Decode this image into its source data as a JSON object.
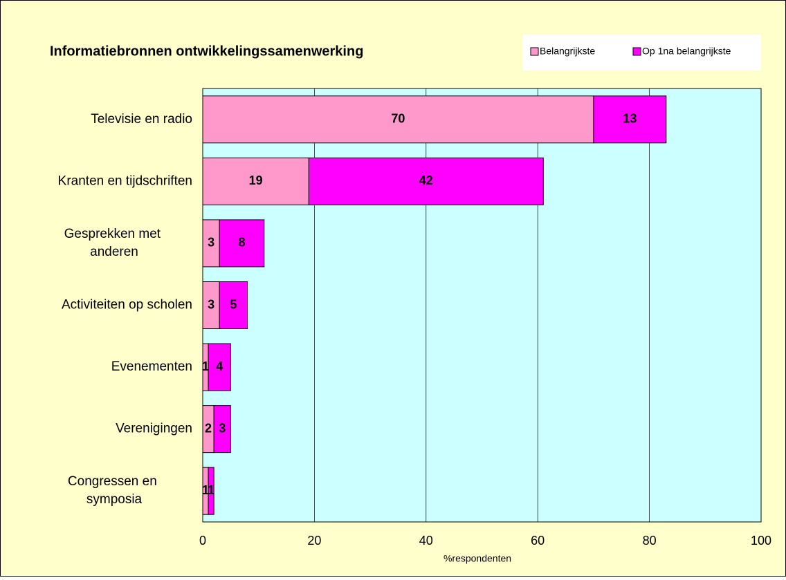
{
  "chart_data": {
    "type": "stacked-bar-horizontal",
    "title": "Informatiebronnen ontwikkelingssamenwerking",
    "categories": [
      "Televisie en radio",
      "Kranten en tijdschriften",
      "Gesprekken met anderen",
      "Activiteiten op scholen",
      "Evenementen",
      "Verenigingen",
      "Congressen en symposia"
    ],
    "series": [
      {
        "name": "Belangrijkste",
        "color": "#FF99CC",
        "values": [
          70,
          19,
          3,
          3,
          1,
          2,
          1
        ]
      },
      {
        "name": "Op 1na belangrijkste",
        "color": "#FF00FF",
        "values": [
          13,
          42,
          8,
          5,
          4,
          3,
          1
        ]
      }
    ],
    "xlabel": "%respondenten",
    "xlim": [
      0,
      100
    ],
    "xticks": [
      0,
      20,
      40,
      60,
      80,
      100
    ],
    "grid": true,
    "legend": "top-right"
  }
}
